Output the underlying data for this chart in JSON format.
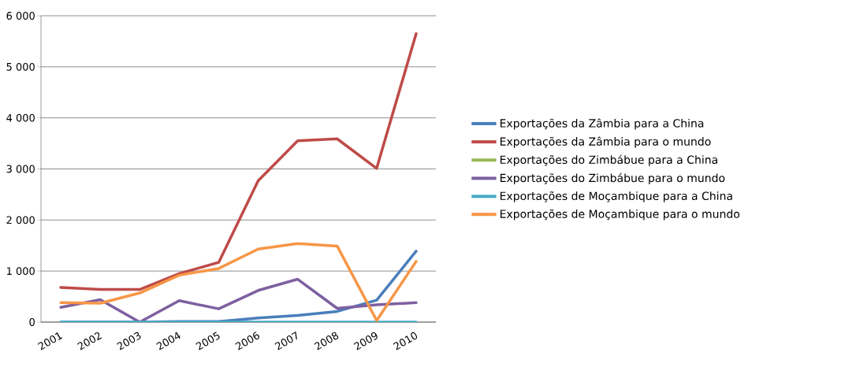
{
  "chart_data": {
    "type": "line",
    "categories": [
      "2001",
      "2002",
      "2003",
      "2004",
      "2005",
      "2006",
      "2007",
      "2008",
      "2009",
      "2010"
    ],
    "series": [
      {
        "name": "Exportações da Zâmbia para a China",
        "color": "#4a7ebb",
        "values": [
          0,
          0,
          0,
          10,
          10,
          80,
          130,
          210,
          430,
          1390
        ]
      },
      {
        "name": "Exportações da Zâmbia para o mundo",
        "color": "#be4b48",
        "values": [
          680,
          640,
          640,
          950,
          1170,
          2770,
          3550,
          3590,
          3010,
          5650
        ]
      },
      {
        "name": "Exportações do Zimbábue para a China",
        "color": "#98b954",
        "values": [
          null,
          null,
          null,
          null,
          null,
          null,
          null,
          null,
          null,
          null
        ]
      },
      {
        "name": "Exportações do Zimbábue para o mundo",
        "color": "#7d60a0",
        "values": [
          290,
          440,
          0,
          420,
          260,
          620,
          840,
          270,
          340,
          380
        ]
      },
      {
        "name": "Exportações de Moçambique para a China",
        "color": "#46aac5",
        "values": [
          0,
          0,
          0,
          0,
          0,
          0,
          0,
          0,
          0,
          0
        ]
      },
      {
        "name": "Exportações de Moçambique para o mundo",
        "color": "#f79646",
        "values": [
          380,
          370,
          570,
          920,
          1050,
          1430,
          1540,
          1490,
          30,
          1190
        ]
      }
    ],
    "ylim": [
      0,
      6000
    ],
    "yticks": [
      {
        "value": 0,
        "label": "0"
      },
      {
        "value": 1000,
        "label": "1 000"
      },
      {
        "value": 2000,
        "label": "2 000"
      },
      {
        "value": 3000,
        "label": "3 000"
      },
      {
        "value": 4000,
        "label": "4 000"
      },
      {
        "value": 5000,
        "label": "5 000"
      },
      {
        "value": 6000,
        "label": "6 000"
      }
    ],
    "grid": "y",
    "legend": "right",
    "marker": "none",
    "line_style": "solid"
  }
}
